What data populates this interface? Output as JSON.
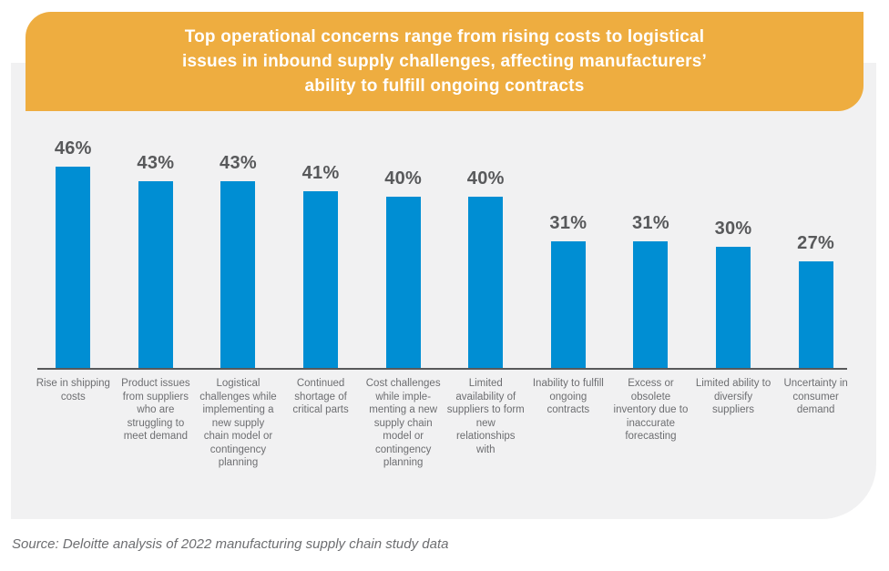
{
  "header": {
    "title_lines": [
      "Top operational concerns range from rising costs to logistical",
      "issues in inbound supply challenges, affecting manufacturers’",
      "ability to fulfill ongoing contracts"
    ],
    "bg_color": "#eead40",
    "text_color": "#ffffff"
  },
  "chart_data": {
    "type": "bar",
    "title": "Top operational concerns range from rising costs to logistical issues in inbound supply challenges, affecting manufacturers’ ability to fulfill ongoing contracts",
    "categories": [
      "Rise in shipping costs",
      "Product issues from suppliers who are struggling to meet demand",
      "Logistical challenges while implementing a new supply chain model or contingency planning",
      "Continued shortage of critical parts",
      "Cost challenges while imple-menting a new supply chain model or contingency planning",
      "Limited availability of suppliers to form new relationships with",
      "Inability to fulfill ongoing contracts",
      "Excess or obsolete inventory due to inaccurate forecasting",
      "Limited ability to diversify suppliers",
      "Uncertainty in consumer demand"
    ],
    "values": [
      46,
      43,
      43,
      41,
      40,
      40,
      31,
      31,
      30,
      27
    ],
    "value_labels": [
      "46%",
      "43%",
      "43%",
      "41%",
      "40%",
      "40%",
      "31%",
      "31%",
      "30%",
      "27%"
    ],
    "unit": "%",
    "xlabel": "",
    "ylabel": "",
    "ylim": [
      0,
      50
    ],
    "grid": false,
    "legend": false,
    "bar_color": "#008ed3",
    "value_label_color": "#58595b",
    "category_label_color": "#6d6e71",
    "axis_color": "#58595b",
    "panel_color": "#f1f1f2"
  },
  "source": {
    "text": "Source: Deloitte analysis of 2022 manufacturing supply chain study data"
  }
}
